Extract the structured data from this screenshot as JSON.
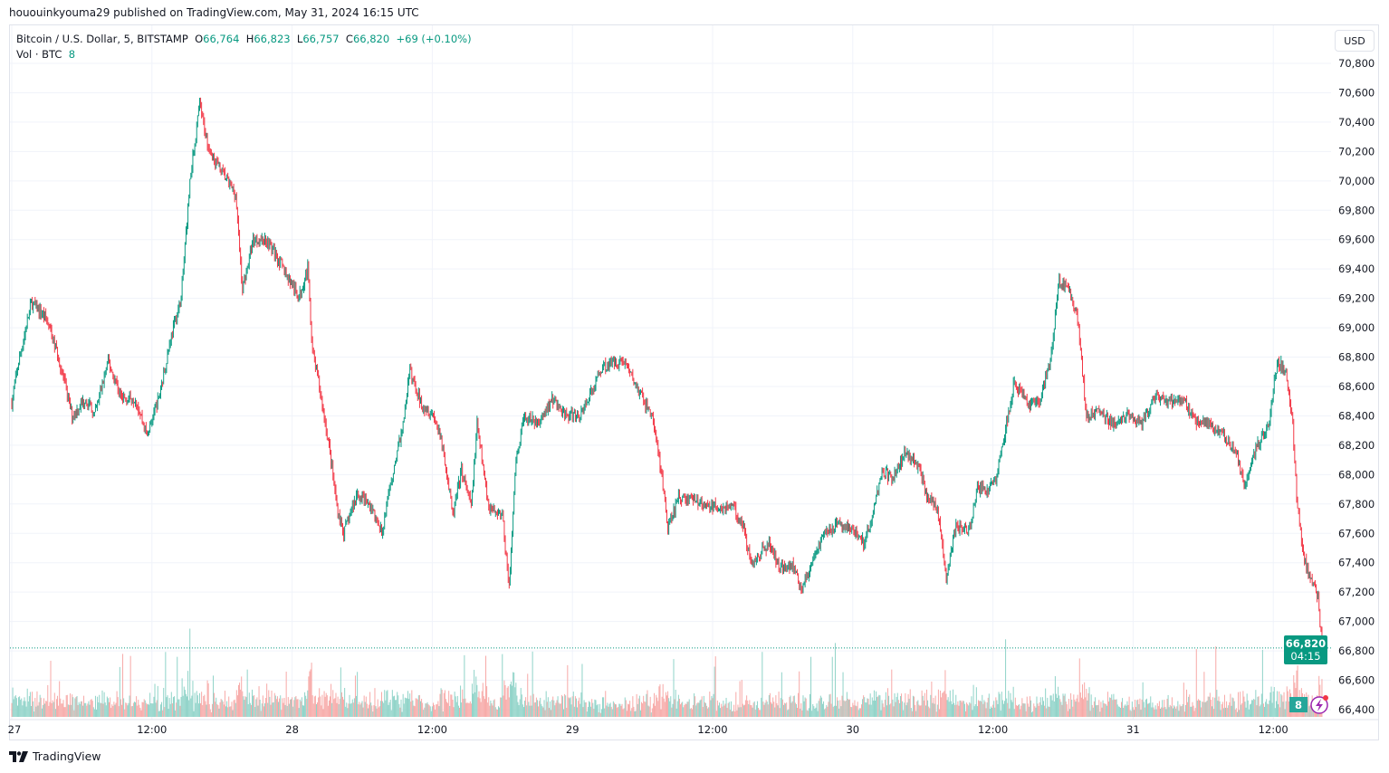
{
  "published": "hououinkyouma29 published on TradingView.com, May 31, 2024 16:15 UTC",
  "legend": {
    "symbol": "Bitcoin / U.S. Dollar, 5, BITSTAMP",
    "o_label": "O",
    "o": "66,764",
    "h_label": "H",
    "h": "66,823",
    "l_label": "L",
    "l": "66,757",
    "c_label": "C",
    "c": "66,820",
    "change": "+69 (+0.10%)",
    "vol_label": "Vol · BTC",
    "vol": "8"
  },
  "currency_button": "USD",
  "last_price_label": "66,820",
  "countdown": "04:15",
  "volume_badge": "8",
  "footer_brand": "TradingView",
  "colors": {
    "up": "#089981",
    "down": "#f23645",
    "up_volume": "#8fd3c8",
    "down_volume": "#f7a9a7",
    "grid": "#f0f3fa"
  },
  "icons": [
    "lightning-alert-icon",
    "tradingview-logo-icon"
  ],
  "chart_data": {
    "type": "candlestick",
    "interval": "5",
    "ylim": [
      66300,
      70900
    ],
    "y_ticks": [
      "70,800",
      "70,600",
      "70,400",
      "70,200",
      "70,000",
      "69,800",
      "69,600",
      "69,400",
      "69,200",
      "69,000",
      "68,800",
      "68,600",
      "68,400",
      "68,200",
      "68,000",
      "67,800",
      "67,600",
      "67,400",
      "67,200",
      "67,000",
      "66,800",
      "66,600",
      "66,400"
    ],
    "x_ticks": [
      {
        "t": "2024-05-27 00:00",
        "label": "27"
      },
      {
        "t": "2024-05-27 12:00",
        "label": "12:00"
      },
      {
        "t": "2024-05-28 00:00",
        "label": "28"
      },
      {
        "t": "2024-05-28 12:00",
        "label": "12:00"
      },
      {
        "t": "2024-05-29 00:00",
        "label": "29"
      },
      {
        "t": "2024-05-29 12:00",
        "label": "12:00"
      },
      {
        "t": "2024-05-30 00:00",
        "label": "30"
      },
      {
        "t": "2024-05-30 12:00",
        "label": "12:00"
      },
      {
        "t": "2024-05-31 00:00",
        "label": "31"
      },
      {
        "t": "2024-05-31 12:00",
        "label": "12:00"
      }
    ],
    "last_close": 66820,
    "approx_close_path": [
      [
        "2024-05-27 00:00",
        68490
      ],
      [
        "2024-05-27 00:30",
        68730
      ],
      [
        "2024-05-27 01:40",
        69170
      ],
      [
        "2024-05-27 02:55",
        69070
      ],
      [
        "2024-05-27 04:00",
        68800
      ],
      [
        "2024-05-27 05:10",
        68400
      ],
      [
        "2024-05-27 06:20",
        68520
      ],
      [
        "2024-05-27 07:05",
        68400
      ],
      [
        "2024-05-27 08:15",
        68770
      ],
      [
        "2024-05-27 09:25",
        68520
      ],
      [
        "2024-05-27 10:35",
        68520
      ],
      [
        "2024-05-27 11:35",
        68270
      ],
      [
        "2024-05-27 12:35",
        68520
      ],
      [
        "2024-05-27 13:40",
        68950
      ],
      [
        "2024-05-27 14:30",
        69200
      ],
      [
        "2024-05-27 15:15",
        70000
      ],
      [
        "2024-05-27 16:05",
        70520
      ],
      [
        "2024-05-27 16:50",
        70220
      ],
      [
        "2024-05-27 18:00",
        70060
      ],
      [
        "2024-05-27 19:10",
        69910
      ],
      [
        "2024-05-27 19:45",
        69260
      ],
      [
        "2024-05-27 20:40",
        69600
      ],
      [
        "2024-05-27 21:50",
        69600
      ],
      [
        "2024-05-27 23:00",
        69440
      ],
      [
        "2024-05-28 00:35",
        69200
      ],
      [
        "2024-05-28 01:20",
        69410
      ],
      [
        "2024-05-28 01:45",
        68830
      ],
      [
        "2024-05-28 02:15",
        68640
      ],
      [
        "2024-05-28 03:15",
        68150
      ],
      [
        "2024-05-28 03:50",
        67780
      ],
      [
        "2024-05-28 04:25",
        67600
      ],
      [
        "2024-05-28 05:35",
        67870
      ],
      [
        "2024-05-28 06:45",
        67780
      ],
      [
        "2024-05-28 07:40",
        67600
      ],
      [
        "2024-05-28 08:40",
        68030
      ],
      [
        "2024-05-28 09:30",
        68340
      ],
      [
        "2024-05-28 10:05",
        68710
      ],
      [
        "2024-05-28 11:00",
        68490
      ],
      [
        "2024-05-28 12:10",
        68400
      ],
      [
        "2024-05-28 13:00",
        68150
      ],
      [
        "2024-05-28 13:45",
        67720
      ],
      [
        "2024-05-28 14:30",
        68030
      ],
      [
        "2024-05-28 15:20",
        67780
      ],
      [
        "2024-05-28 15:50",
        68340
      ],
      [
        "2024-05-28 16:50",
        67780
      ],
      [
        "2024-05-28 18:00",
        67720
      ],
      [
        "2024-05-28 18:35",
        67230
      ],
      [
        "2024-05-28 19:10",
        68090
      ],
      [
        "2024-05-28 19:55",
        68400
      ],
      [
        "2024-05-28 21:05",
        68340
      ],
      [
        "2024-05-28 22:15",
        68520
      ],
      [
        "2024-05-28 23:25",
        68400
      ],
      [
        "2024-05-29 00:35",
        68400
      ],
      [
        "2024-05-29 01:45",
        68580
      ],
      [
        "2024-05-29 02:30",
        68730
      ],
      [
        "2024-05-29 03:40",
        68770
      ],
      [
        "2024-05-29 04:30",
        68770
      ],
      [
        "2024-05-29 05:35",
        68580
      ],
      [
        "2024-05-29 06:50",
        68400
      ],
      [
        "2024-05-29 07:35",
        68030
      ],
      [
        "2024-05-29 08:10",
        67630
      ],
      [
        "2024-05-29 09:05",
        67840
      ],
      [
        "2024-05-29 10:20",
        67840
      ],
      [
        "2024-05-29 11:25",
        67780
      ],
      [
        "2024-05-29 12:35",
        67780
      ],
      [
        "2024-05-29 13:45",
        67780
      ],
      [
        "2024-05-29 14:35",
        67660
      ],
      [
        "2024-05-29 15:20",
        67380
      ],
      [
        "2024-05-29 16:05",
        67470
      ],
      [
        "2024-05-29 16:50",
        67530
      ],
      [
        "2024-05-29 17:40",
        67380
      ],
      [
        "2024-05-29 18:50",
        67380
      ],
      [
        "2024-05-29 19:35",
        67230
      ],
      [
        "2024-05-29 20:20",
        67350
      ],
      [
        "2024-05-29 21:30",
        67600
      ],
      [
        "2024-05-29 22:40",
        67660
      ],
      [
        "2024-05-29 23:50",
        67630
      ],
      [
        "2024-05-30 01:00",
        67530
      ],
      [
        "2024-05-30 01:50",
        67780
      ],
      [
        "2024-05-30 02:35",
        68030
      ],
      [
        "2024-05-30 03:20",
        67970
      ],
      [
        "2024-05-30 04:30",
        68150
      ],
      [
        "2024-05-30 05:40",
        68060
      ],
      [
        "2024-05-30 06:25",
        67840
      ],
      [
        "2024-05-30 07:15",
        67780
      ],
      [
        "2024-05-30 08:00",
        67290
      ],
      [
        "2024-05-30 08:50",
        67660
      ],
      [
        "2024-05-30 09:55",
        67600
      ],
      [
        "2024-05-30 10:40",
        67900
      ],
      [
        "2024-05-30 11:30",
        67900
      ],
      [
        "2024-05-30 12:15",
        67970
      ],
      [
        "2024-05-30 13:00",
        68270
      ],
      [
        "2024-05-30 13:50",
        68640
      ],
      [
        "2024-05-30 15:00",
        68460
      ],
      [
        "2024-05-30 16:05",
        68520
      ],
      [
        "2024-05-30 16:55",
        68770
      ],
      [
        "2024-05-30 17:40",
        69320
      ],
      [
        "2024-05-30 18:30",
        69260
      ],
      [
        "2024-05-30 19:15",
        69070
      ],
      [
        "2024-05-30 20:00",
        68400
      ],
      [
        "2024-05-30 21:10",
        68430
      ],
      [
        "2024-05-30 22:20",
        68340
      ],
      [
        "2024-05-30 23:30",
        68400
      ],
      [
        "2024-05-31 00:40",
        68340
      ],
      [
        "2024-05-31 01:50",
        68520
      ],
      [
        "2024-05-31 03:00",
        68490
      ],
      [
        "2024-05-31 04:10",
        68520
      ],
      [
        "2024-05-31 05:20",
        68370
      ],
      [
        "2024-05-31 06:30",
        68340
      ],
      [
        "2024-05-31 07:40",
        68270
      ],
      [
        "2024-05-31 08:50",
        68150
      ],
      [
        "2024-05-31 09:35",
        67900
      ],
      [
        "2024-05-31 10:20",
        68150
      ],
      [
        "2024-05-31 11:35",
        68340
      ],
      [
        "2024-05-31 12:20",
        68770
      ],
      [
        "2024-05-31 13:05",
        68710
      ],
      [
        "2024-05-31 13:40",
        68340
      ],
      [
        "2024-05-31 14:00",
        67840
      ],
      [
        "2024-05-31 14:40",
        67410
      ],
      [
        "2024-05-31 15:15",
        67290
      ],
      [
        "2024-05-31 15:50",
        67160
      ],
      [
        "2024-05-31 16:10",
        66820
      ]
    ]
  }
}
